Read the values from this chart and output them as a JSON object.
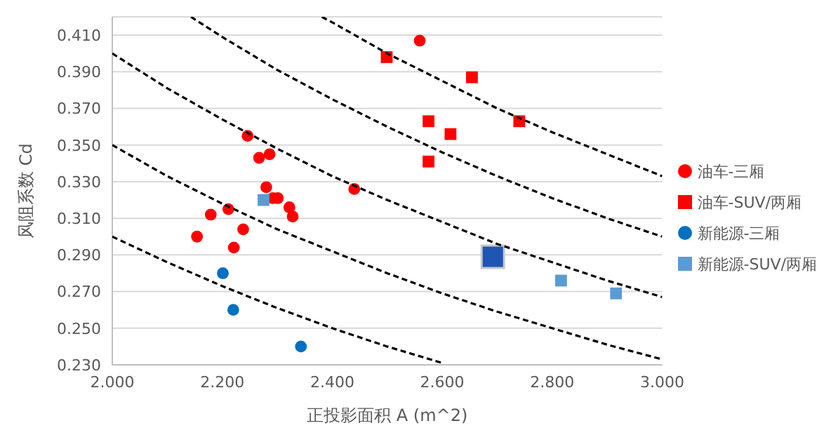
{
  "chart_data": {
    "type": "scatter",
    "xlabel": "正投影面积 A (m^2)",
    "ylabel": "风阻系数 Cd",
    "xlim": [
      2.0,
      3.0
    ],
    "xticks": [
      {
        "value": 2.0,
        "label": "2.000"
      },
      {
        "value": 2.2,
        "label": "2.200"
      },
      {
        "value": 2.4,
        "label": "2.400"
      },
      {
        "value": 2.6,
        "label": "2.600"
      },
      {
        "value": 2.8,
        "label": "2.800"
      },
      {
        "value": 3.0,
        "label": "3.000"
      }
    ],
    "ylim": [
      0.23,
      0.42
    ],
    "yticks": [
      {
        "value": 0.23,
        "label": "0.230"
      },
      {
        "value": 0.25,
        "label": "0.250"
      },
      {
        "value": 0.27,
        "label": "0.270"
      },
      {
        "value": 0.29,
        "label": "0.290"
      },
      {
        "value": 0.31,
        "label": "0.310"
      },
      {
        "value": 0.33,
        "label": "0.330"
      },
      {
        "value": 0.35,
        "label": "0.350"
      },
      {
        "value": 0.37,
        "label": "0.370"
      },
      {
        "value": 0.39,
        "label": "0.390"
      },
      {
        "value": 0.41,
        "label": "0.410"
      }
    ],
    "grid": "y",
    "legend": "right",
    "series": [
      {
        "name": "油车-三厢",
        "type": "scatter",
        "marker": "circle",
        "color": "#ff0000",
        "x": [
          2.559,
          2.246,
          2.267,
          2.286,
          2.28,
          2.44,
          2.292,
          2.301,
          2.322,
          2.328,
          2.211,
          2.179,
          2.154,
          2.238,
          2.221
        ],
        "values": [
          0.407,
          0.355,
          0.343,
          0.345,
          0.327,
          0.326,
          0.321,
          0.321,
          0.316,
          0.311,
          0.315,
          0.312,
          0.3,
          0.304,
          0.294
        ]
      },
      {
        "name": "油车-SUV/两厢",
        "type": "scatter",
        "marker": "square",
        "color": "#ff0000",
        "x": [
          2.499,
          2.575,
          2.575,
          2.615,
          2.654,
          2.74
        ],
        "values": [
          0.398,
          0.363,
          0.341,
          0.356,
          0.387,
          0.363
        ]
      },
      {
        "name": "新能源-三厢",
        "type": "scatter",
        "marker": "circle",
        "color": "#0070c0",
        "x": [
          2.201,
          2.22,
          2.343
        ],
        "values": [
          0.28,
          0.26,
          0.24
        ]
      },
      {
        "name": "新能源-SUV/两厢",
        "type": "scatter",
        "marker": "square",
        "color": "#5b9bd5",
        "x": [
          2.275,
          2.816,
          2.916
        ],
        "values": [
          0.32,
          0.276,
          0.269
        ]
      },
      {
        "type": "scatter",
        "marker": "square",
        "color": "#1f56b5",
        "x": [
          2.692
        ],
        "values": [
          0.289
        ]
      },
      {
        "type": "line",
        "marker": "none",
        "line_style": "dashed",
        "color": "#000000",
        "x": [
          2.381,
          2.4,
          2.5,
          2.6,
          2.7,
          2.8,
          2.9,
          3.0
        ],
        "values": [
          0.42,
          0.417,
          0.4,
          0.385,
          0.37,
          0.357,
          0.345,
          0.333
        ]
      },
      {
        "type": "line",
        "marker": "none",
        "line_style": "dashed",
        "color": "#000000",
        "x": [
          2.143,
          2.2,
          2.3,
          2.4,
          2.5,
          2.6,
          2.7,
          2.8,
          2.9,
          3.0
        ],
        "values": [
          0.42,
          0.409,
          0.391,
          0.375,
          0.36,
          0.346,
          0.333,
          0.321,
          0.31,
          0.3
        ]
      },
      {
        "type": "line",
        "marker": "none",
        "line_style": "dashed",
        "color": "#000000",
        "x": [
          2.0,
          2.1,
          2.2,
          2.3,
          2.4,
          2.5,
          2.6,
          2.7,
          2.8,
          2.9,
          3.0
        ],
        "values": [
          0.4,
          0.381,
          0.364,
          0.348,
          0.333,
          0.32,
          0.308,
          0.296,
          0.286,
          0.276,
          0.267
        ]
      },
      {
        "type": "line",
        "marker": "none",
        "line_style": "dashed",
        "color": "#000000",
        "x": [
          2.0,
          2.1,
          2.2,
          2.3,
          2.4,
          2.5,
          2.6,
          2.7,
          2.8,
          2.9,
          3.0
        ],
        "values": [
          0.35,
          0.333,
          0.318,
          0.304,
          0.292,
          0.28,
          0.269,
          0.259,
          0.25,
          0.241,
          0.233
        ]
      },
      {
        "type": "line",
        "marker": "none",
        "line_style": "dashed",
        "color": "#000000",
        "x": [
          2.0,
          2.1,
          2.2,
          2.3,
          2.4,
          2.5,
          2.6
        ],
        "values": [
          0.3,
          0.286,
          0.273,
          0.261,
          0.25,
          0.24,
          0.231
        ]
      }
    ]
  }
}
